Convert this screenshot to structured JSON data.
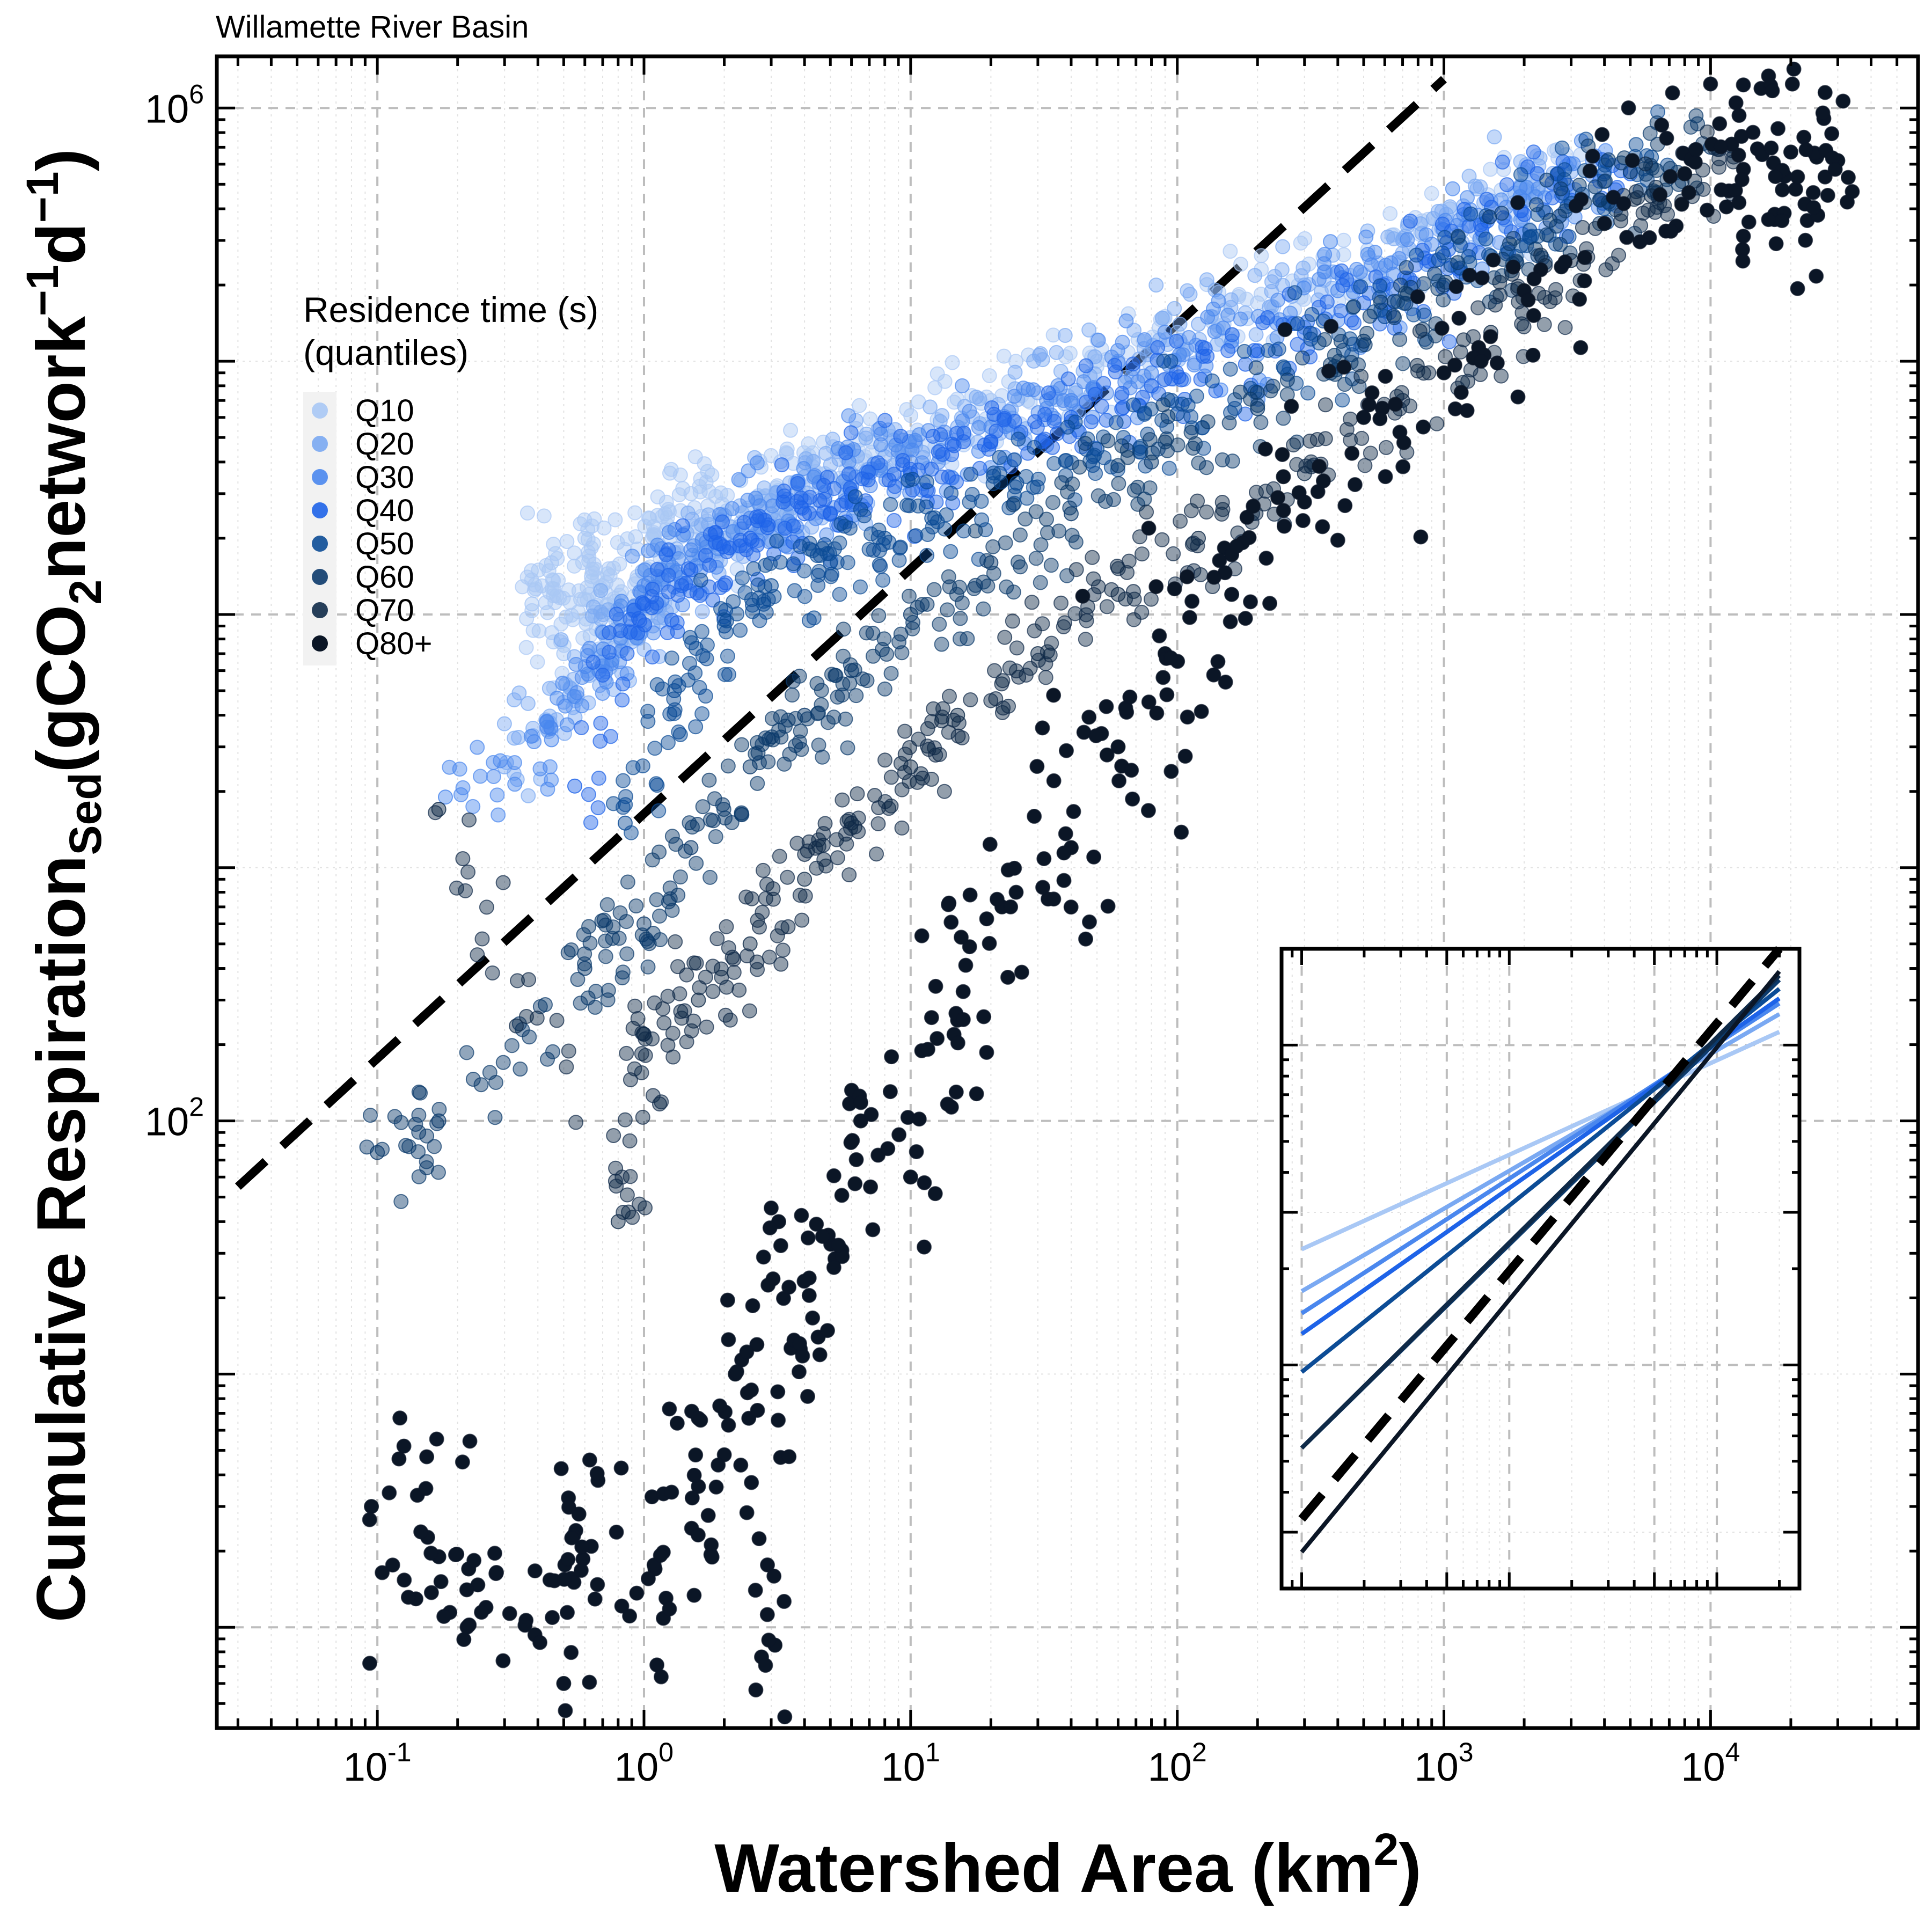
{
  "chart_data": {
    "type": "scatter",
    "title": "Willamette River Basin",
    "xlabel": {
      "main": "Watershed Area (km",
      "sup": "2",
      "tail": ")"
    },
    "ylabel": {
      "main": "Cumulative Respiration",
      "sub1": "Sed",
      "mid": "(gCO",
      "sub2": "2",
      "mid2": "network",
      "sup1": "−1",
      "mid3": "d",
      "sup2": "−1",
      "tail": ")"
    },
    "x_scale": "log",
    "y_scale": "log",
    "xlim": [
      0.025,
      60000
    ],
    "ylim": [
      0.4,
      1600000
    ],
    "x_ticks": [
      {
        "base": "10",
        "exp": "-1",
        "value": 0.1
      },
      {
        "base": "10",
        "exp": "0",
        "value": 1
      },
      {
        "base": "10",
        "exp": "1",
        "value": 10
      },
      {
        "base": "10",
        "exp": "2",
        "value": 100
      },
      {
        "base": "10",
        "exp": "3",
        "value": 1000
      },
      {
        "base": "10",
        "exp": "4",
        "value": 10000
      }
    ],
    "y_ticks": [
      {
        "base": "10",
        "exp": "2",
        "value": 100
      },
      {
        "base": "10",
        "exp": "6",
        "value": 1000000
      }
    ],
    "grid": true,
    "legend": {
      "title_line1": "Residence time (s)",
      "title_line2": "(quantiles)",
      "placement": "upper-left",
      "entries": [
        {
          "label": "Q10",
          "color": "#a9c8f5"
        },
        {
          "label": "Q20",
          "color": "#7aa9f2"
        },
        {
          "label": "Q30",
          "color": "#4a87ee"
        },
        {
          "label": "Q40",
          "color": "#1e63e8"
        },
        {
          "label": "Q50",
          "color": "#0c4c96"
        },
        {
          "label": "Q60",
          "color": "#0c3a6b"
        },
        {
          "label": "Q70",
          "color": "#0f2a48"
        },
        {
          "label": "Q80+",
          "color": "#0b1626"
        }
      ]
    },
    "overall_fit": {
      "x": [
        0.03,
        1000
      ],
      "y": [
        55,
        1300000
      ],
      "style": "dashed",
      "color": "#000000"
    },
    "quantile_points": [
      {
        "quantile": "Q10",
        "x": [
          0.38,
          0.45,
          0.5,
          0.6,
          0.7,
          0.8,
          1.0,
          1.2,
          1.5,
          2,
          3,
          4,
          6,
          10,
          20,
          50,
          100,
          200,
          500,
          1000,
          2000,
          3000
        ],
        "y": [
          11000,
          16000,
          7000,
          20000,
          13000,
          9500,
          12000,
          25000,
          30000,
          20000,
          28000,
          35000,
          40000,
          50000,
          70000,
          100000,
          130000,
          170000,
          220000,
          330000,
          440000,
          600000
        ]
      },
      {
        "quantile": "Q20",
        "x": [
          0.3,
          0.5,
          0.7,
          1.0,
          1.5,
          2,
          3,
          5,
          8,
          15,
          30,
          60,
          120,
          300,
          700,
          1500,
          3000
        ],
        "y": [
          2500,
          4500,
          6500,
          9000,
          16000,
          20000,
          25000,
          35000,
          42000,
          55000,
          75000,
          100000,
          140000,
          200000,
          300000,
          430000,
          560000
        ]
      },
      {
        "quantile": "Q30",
        "x": [
          0.18,
          0.45,
          0.7,
          1.0,
          1.5,
          2.5,
          4,
          6,
          10,
          20,
          40,
          80,
          160,
          400,
          900,
          2000,
          4000
        ],
        "y": [
          1900,
          3200,
          8500,
          13000,
          18000,
          24000,
          28000,
          32000,
          40000,
          55000,
          70000,
          90000,
          120000,
          190000,
          290000,
          430000,
          560000
        ]
      },
      {
        "quantile": "Q40",
        "x": [
          0.55,
          1.0,
          1.5,
          2.5,
          4,
          6,
          10,
          20,
          40,
          80,
          200,
          500,
          1000,
          2000,
          5000
        ],
        "y": [
          2100,
          11000,
          15000,
          20000,
          25000,
          30000,
          36000,
          48000,
          60000,
          80000,
          110000,
          170000,
          260000,
          380000,
          550000
        ]
      },
      {
        "quantile": "Q50",
        "x": [
          0.85,
          1.3,
          2,
          3,
          5,
          8,
          12,
          25,
          50,
          100,
          250,
          600,
          1500,
          3000,
          6000
        ],
        "y": [
          1500,
          5000,
          9000,
          13000,
          16000,
          20000,
          24000,
          33000,
          45000,
          62000,
          95000,
          150000,
          260000,
          420000,
          640000
        ]
      },
      {
        "quantile": "Q60",
        "x": [
          0.1,
          0.17,
          0.6,
          1.0,
          1.5,
          2.5,
          4,
          6,
          10,
          20,
          40,
          80,
          200,
          500,
          1000,
          2500,
          5000,
          10000
        ],
        "y": [
          75,
          100,
          400,
          600,
          1200,
          2500,
          4000,
          6000,
          10000,
          16000,
          25000,
          40000,
          65000,
          120000,
          200000,
          360000,
          560000,
          700000
        ]
      },
      {
        "quantile": "Q70",
        "x": [
          0.17,
          0.8,
          1.0,
          1.6,
          2.5,
          4,
          6,
          10,
          15,
          30,
          60,
          120,
          300,
          700,
          1500,
          3000,
          6000,
          12000
        ],
        "y": [
          1700,
          40,
          220,
          300,
          500,
          900,
          1500,
          2500,
          4000,
          7000,
          12000,
          20000,
          36000,
          70000,
          130000,
          250000,
          450000,
          680000
        ]
      },
      {
        "quantile": "Q80+",
        "x": [
          0.095,
          0.17,
          0.22,
          0.5,
          0.57,
          1.1,
          1.6,
          2.2,
          3.1,
          3.2,
          4.5,
          6.5,
          10,
          15,
          22,
          40,
          60,
          90,
          160,
          250,
          500,
          1000,
          2000,
          4000,
          8000,
          12000,
          15000,
          20000,
          25000,
          30000
        ],
        "y": [
          3,
          1.9,
          1.7,
          0.6,
          2.8,
          1.7,
          3.6,
          10,
          0.85,
          40,
          14,
          100,
          60,
          250,
          700,
          1200,
          3000,
          7000,
          12000,
          35000,
          60000,
          90000,
          190000,
          350000,
          550000,
          720000,
          690000,
          670000,
          640000,
          620000
        ]
      }
    ],
    "inset": {
      "type": "line",
      "x_scale": "log",
      "y_scale": "log",
      "grid": true,
      "placement": "lower-right",
      "xlim": [
        80,
        25000
      ],
      "ylim": [
        0.2,
        20
      ],
      "series": [
        {
          "quantile": "Q10",
          "color": "#a9c8f5",
          "x": [
            100,
            20000
          ],
          "y": [
            2.3,
            11
          ]
        },
        {
          "quantile": "Q20",
          "color": "#7aa9f2",
          "x": [
            100,
            20000
          ],
          "y": [
            1.7,
            12.5
          ]
        },
        {
          "quantile": "Q30",
          "color": "#4a87ee",
          "x": [
            100,
            20000
          ],
          "y": [
            1.45,
            13.5
          ]
        },
        {
          "quantile": "Q40",
          "color": "#1e63e8",
          "x": [
            100,
            20000
          ],
          "y": [
            1.25,
            14
          ]
        },
        {
          "quantile": "Q50",
          "color": "#0c4c96",
          "x": [
            100,
            20000
          ],
          "y": [
            0.95,
            15
          ]
        },
        {
          "quantile": "Q60",
          "color": "#0c3a6b",
          "x": [
            100,
            20000
          ],
          "y": [
            0.55,
            16
          ]
        },
        {
          "quantile": "Q70",
          "color": "#0f2a48",
          "x": [
            100,
            20000
          ],
          "y": [
            0.55,
            16.5
          ]
        },
        {
          "quantile": "Q80+",
          "color": "#0b1626",
          "x": [
            100,
            20000
          ],
          "y": [
            0.26,
            17
          ]
        }
      ],
      "overall_fit": {
        "x": [
          100,
          20000
        ],
        "y": [
          0.33,
          20
        ],
        "style": "dashed",
        "color": "#000000"
      }
    }
  }
}
